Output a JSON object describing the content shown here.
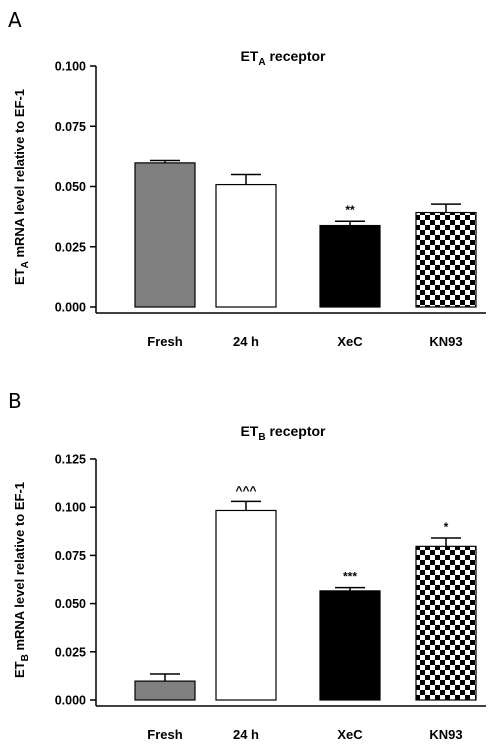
{
  "panels": [
    {
      "letter": "A",
      "title_main": "ET",
      "title_sub": "A",
      "title_rest": " receptor",
      "ylabel_main": "ET",
      "ylabel_sub": "A",
      "ylabel_rest": " mRNA level relative to EF-1"
    },
    {
      "letter": "B",
      "title_main": "ET",
      "title_sub": "B",
      "title_rest": " receptor",
      "ylabel_main": "ET",
      "ylabel_sub": "B",
      "ylabel_rest": " mRNA level relative to EF-1"
    }
  ],
  "chart_data": [
    {
      "type": "bar",
      "title": "ETA receptor",
      "ylabel": "ETA mRNA level relative to EF-1",
      "categories": [
        "Fresh",
        "24 h",
        "XeC",
        "KN93"
      ],
      "values": [
        0.0598,
        0.0508,
        0.0338,
        0.0392
      ],
      "errors": [
        0.001,
        0.0042,
        0.0018,
        0.0035
      ],
      "annotations": [
        "",
        "",
        "**",
        ""
      ],
      "fills": [
        "gray",
        "white",
        "black",
        "checker"
      ],
      "ylim": [
        0,
        0.1
      ],
      "yticks": [
        0.0,
        0.025,
        0.05,
        0.075,
        0.1
      ],
      "ytick_labels": [
        "0.000",
        "0.025",
        "0.050",
        "0.075",
        "0.100"
      ],
      "grid": false
    },
    {
      "type": "bar",
      "title": "ETB receptor",
      "ylabel": "ETB mRNA level relative to EF-1",
      "categories": [
        "Fresh",
        "24 h",
        "XeC",
        "KN93"
      ],
      "values": [
        0.0098,
        0.0983,
        0.0566,
        0.0797
      ],
      "errors": [
        0.0037,
        0.0047,
        0.0017,
        0.0043
      ],
      "annotations": [
        "",
        "^^^",
        "***",
        "*"
      ],
      "fills": [
        "gray",
        "white",
        "black",
        "checker"
      ],
      "ylim": [
        0,
        0.125
      ],
      "yticks": [
        0.0,
        0.025,
        0.05,
        0.075,
        0.1,
        0.125
      ],
      "ytick_labels": [
        "0.000",
        "0.025",
        "0.050",
        "0.075",
        "0.100",
        "0.125"
      ],
      "grid": false
    }
  ]
}
